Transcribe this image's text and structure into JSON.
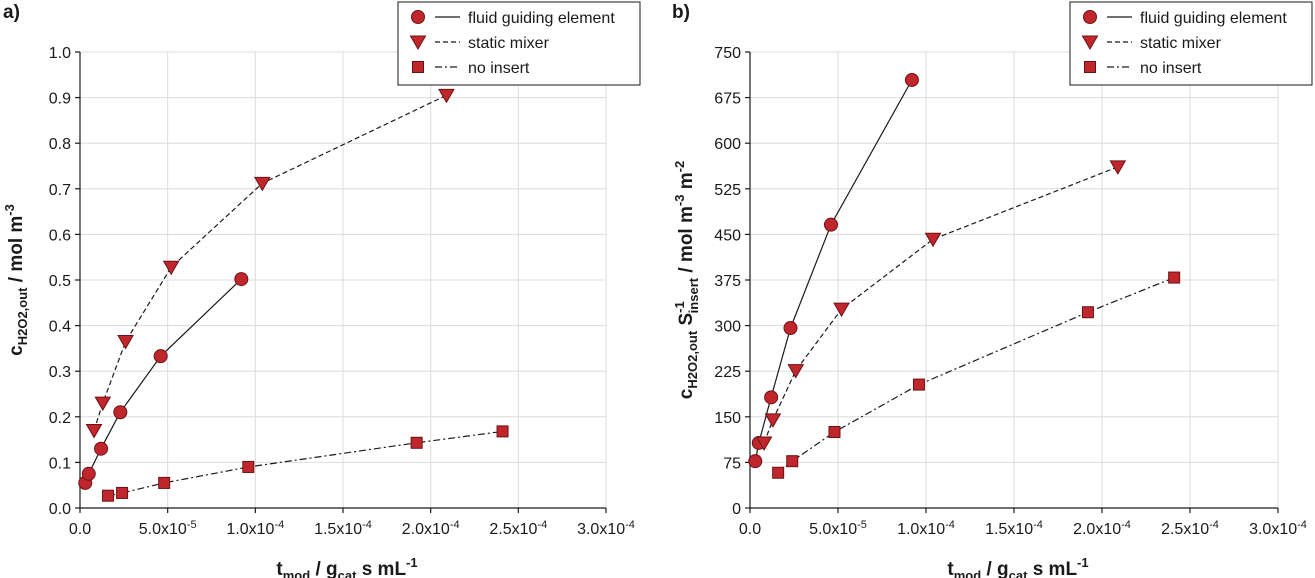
{
  "chart_data": [
    {
      "type": "line",
      "panel": "a)",
      "xlabel": {
        "main": "t",
        "sub": "mod",
        "rest": " / g",
        "sub2": "cat",
        "rest2": " s mL",
        "sup": "-1"
      },
      "ylabel": {
        "main": "c",
        "sub": "H2O2,out",
        "rest": " / mol m",
        "sup": "-3"
      },
      "xlim": [
        0,
        0.0003
      ],
      "ylim": [
        0,
        1.0
      ],
      "xticks": [
        "0.0",
        "5.0x10",
        "1.0x10",
        "1.5x10",
        "2.0x10",
        "2.5x10",
        "3.0x10"
      ],
      "xtick_exps": [
        "",
        "-5",
        "-4",
        "-4",
        "-4",
        "-4",
        "-4"
      ],
      "yticks": [
        "0.0",
        "0.1",
        "0.2",
        "0.3",
        "0.4",
        "0.5",
        "0.6",
        "0.7",
        "0.8",
        "0.9",
        "1.0"
      ],
      "grid": true,
      "legend_position": "top-right",
      "series": [
        {
          "name": "fluid guiding element",
          "marker": "circle",
          "line": "solid",
          "x": [
            3e-06,
            5e-06,
            1.2e-05,
            2.3e-05,
            4.6e-05,
            9.2e-05
          ],
          "y": [
            0.055,
            0.075,
            0.13,
            0.21,
            0.333,
            0.502
          ]
        },
        {
          "name": "static mixer",
          "marker": "triangle-down",
          "line": "dashed",
          "x": [
            8e-06,
            1.3e-05,
            2.6e-05,
            5.2e-05,
            0.000104,
            0.000209
          ],
          "y": [
            0.17,
            0.23,
            0.365,
            0.528,
            0.712,
            0.905
          ]
        },
        {
          "name": "no insert",
          "marker": "square",
          "line": "dashdot",
          "x": [
            1.6e-05,
            2.4e-05,
            4.8e-05,
            9.6e-05,
            0.000192,
            0.000241
          ],
          "y": [
            0.027,
            0.033,
            0.055,
            0.09,
            0.143,
            0.168
          ]
        }
      ]
    },
    {
      "type": "line",
      "panel": "b)",
      "xlabel": {
        "main": "t",
        "sub": "mod",
        "rest": " / g",
        "sub2": "cat",
        "rest2": " s mL",
        "sup": "-1"
      },
      "ylabel": {
        "main": "c",
        "sub": "H2O2,out",
        "rest": " S",
        "sup": "-1",
        "sub3": "insert",
        "rest3": " / mol m",
        "sup2": "-3",
        "rest4": " m",
        "sup3": "-2"
      },
      "xlim": [
        0,
        0.0003
      ],
      "ylim": [
        0,
        750
      ],
      "xticks": [
        "0.0",
        "5.0x10",
        "1.0x10",
        "1.5x10",
        "2.0x10",
        "2.5x10",
        "3.0x10"
      ],
      "xtick_exps": [
        "",
        "-5",
        "-4",
        "-4",
        "-4",
        "-4",
        "-4"
      ],
      "yticks": [
        "0",
        "75",
        "150",
        "225",
        "300",
        "375",
        "450",
        "525",
        "600",
        "675",
        "750"
      ],
      "grid": true,
      "legend_position": "top-right",
      "series": [
        {
          "name": "fluid guiding element",
          "marker": "circle",
          "line": "solid",
          "x": [
            3e-06,
            5e-06,
            1.2e-05,
            2.3e-05,
            4.6e-05,
            9.2e-05
          ],
          "y": [
            77,
            107,
            182,
            296,
            466,
            704
          ]
        },
        {
          "name": "static mixer",
          "marker": "triangle-down",
          "line": "dashed",
          "x": [
            8e-06,
            1.3e-05,
            2.6e-05,
            5.2e-05,
            0.000104,
            0.000209
          ],
          "y": [
            107,
            145,
            226,
            327,
            442,
            561
          ]
        },
        {
          "name": "no insert",
          "marker": "square",
          "line": "dashdot",
          "x": [
            1.6e-05,
            2.4e-05,
            4.8e-05,
            9.6e-05,
            0.000192,
            0.000241
          ],
          "y": [
            58,
            77,
            125,
            203,
            322,
            379
          ]
        }
      ]
    }
  ]
}
